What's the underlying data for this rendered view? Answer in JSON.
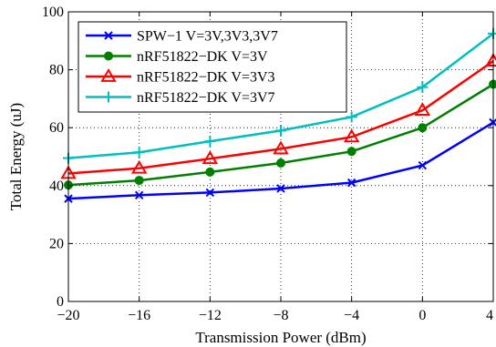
{
  "chart_data": {
    "type": "line",
    "xlabel": "Transmission Power (dBm)",
    "ylabel": "Total Energy (uJ)",
    "xlim": [
      -20,
      4
    ],
    "ylim": [
      0,
      100
    ],
    "xticks": [
      -20,
      -16,
      -12,
      -8,
      -4,
      0,
      4
    ],
    "yticks": [
      0,
      20,
      40,
      60,
      80,
      100
    ],
    "xtick_labels": [
      "−20",
      "−16",
      "−12",
      "−8",
      "−4",
      "0",
      "4"
    ],
    "ytick_labels": [
      "0",
      "20",
      "40",
      "60",
      "80",
      "100"
    ],
    "grid": true,
    "legend_position": "top-left",
    "x": [
      -20,
      -16,
      -12,
      -8,
      -4,
      0,
      4
    ],
    "series": [
      {
        "name": "SPW−1 V=3V,3V3,3V7",
        "color": "#0000ff",
        "marker": "x",
        "values": [
          35.5,
          36.7,
          37.6,
          39.0,
          41.0,
          47.0,
          61.8
        ]
      },
      {
        "name": "nRF51822−DK V=3V",
        "color": "#008000",
        "marker": "circle",
        "values": [
          40.2,
          41.8,
          44.7,
          47.8,
          51.8,
          60.0,
          75.0
        ]
      },
      {
        "name": "nRF51822−DK V=3V3",
        "color": "#ff0000",
        "marker": "triangle",
        "values": [
          44.2,
          46.0,
          49.3,
          52.7,
          56.8,
          66.0,
          83.0
        ]
      },
      {
        "name": "nRF51822−DK V=3V7",
        "color": "#00bfbf",
        "marker": "plus",
        "values": [
          49.5,
          51.5,
          55.3,
          59.0,
          63.7,
          74.0,
          92.5
        ]
      }
    ]
  }
}
